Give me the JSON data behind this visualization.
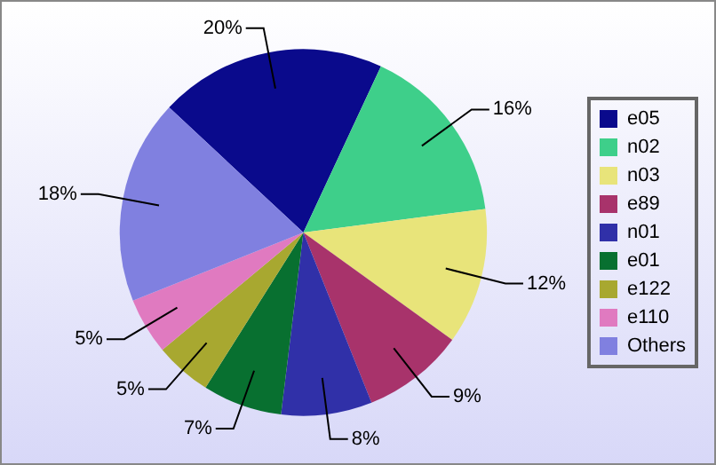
{
  "chart_data": {
    "type": "pie",
    "categories": [
      "e05",
      "n02",
      "n03",
      "e89",
      "n01",
      "e01",
      "e122",
      "e110",
      "Others"
    ],
    "values": [
      20,
      16,
      12,
      9,
      8,
      7,
      5,
      5,
      18
    ],
    "value_labels": [
      "20%",
      "16%",
      "12%",
      "9%",
      "8%",
      "7%",
      "5%",
      "5%",
      "18%"
    ],
    "colors": [
      "#0a0a8c",
      "#3ecf8a",
      "#e8e47a",
      "#a8336b",
      "#3030a8",
      "#087030",
      "#a8a830",
      "#e07ac0",
      "#8080e0"
    ],
    "legend": "right"
  }
}
